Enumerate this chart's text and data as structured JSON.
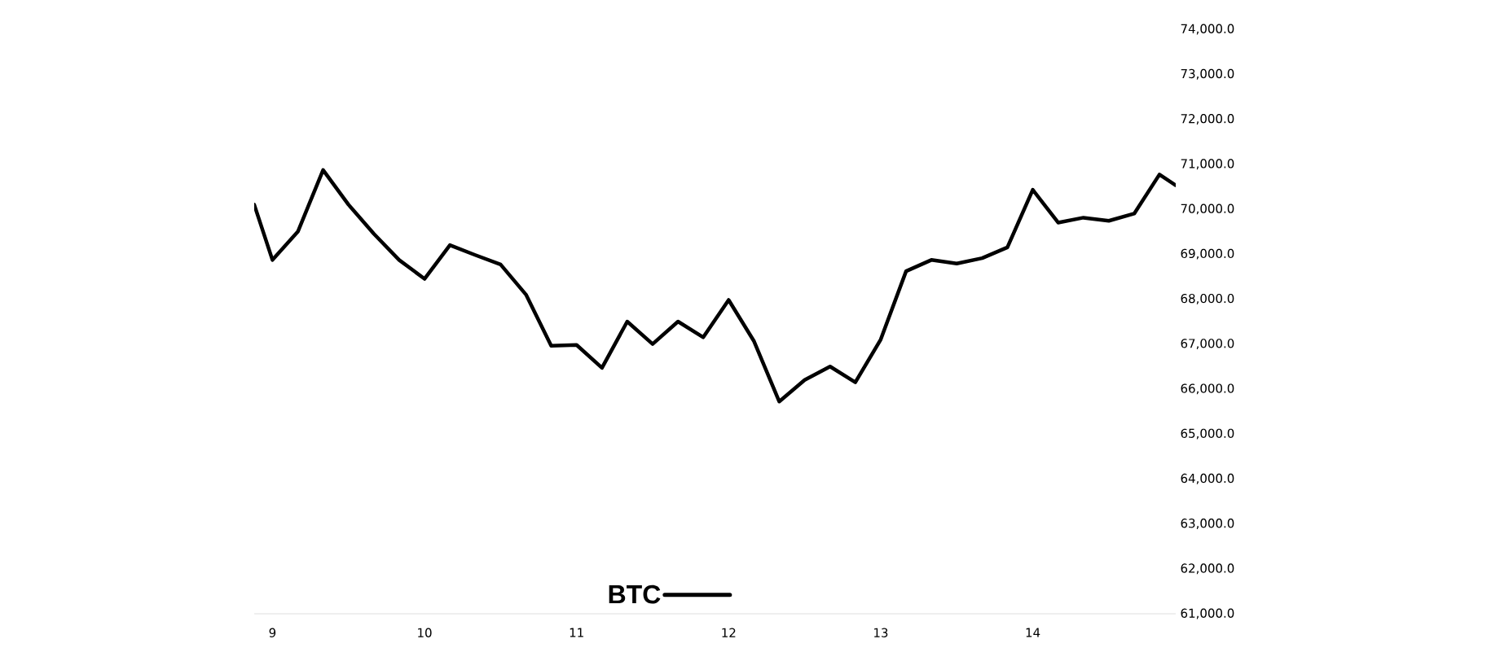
{
  "chart_data": {
    "type": "line",
    "x": [
      8.88,
      9,
      9.167,
      9.333,
      9.5,
      9.667,
      9.833,
      10,
      10.167,
      10.333,
      10.5,
      10.667,
      10.833,
      11,
      11.167,
      11.333,
      11.5,
      11.667,
      11.833,
      12,
      12.167,
      12.333,
      12.5,
      12.667,
      12.833,
      13,
      13.167,
      13.333,
      13.5,
      13.667,
      13.833,
      14,
      14.167,
      14.333,
      14.5,
      14.667,
      14.833,
      14.94
    ],
    "series": [
      {
        "name": "BTC",
        "color": "#000000",
        "values": [
          70100,
          68870,
          69500,
          70870,
          70100,
          69450,
          68870,
          68450,
          69200,
          68980,
          68770,
          68100,
          66960,
          66980,
          66470,
          67500,
          67000,
          67500,
          67150,
          67980,
          67060,
          65720,
          66200,
          66500,
          66150,
          67100,
          68620,
          68870,
          68790,
          68910,
          69150,
          70430,
          69700,
          69810,
          69740,
          69900,
          70770,
          70530
        ]
      }
    ],
    "xlim": [
      8.88,
      14.94
    ],
    "xticks": [
      9,
      10,
      11,
      12,
      13,
      14
    ],
    "ylim": [
      61000,
      74000
    ],
    "yticks": [
      {
        "value": 61000,
        "label": "61,000.0"
      },
      {
        "value": 62000,
        "label": "62,000.0"
      },
      {
        "value": 63000,
        "label": "63,000.0"
      },
      {
        "value": 64000,
        "label": "64,000.0"
      },
      {
        "value": 65000,
        "label": "65,000.0"
      },
      {
        "value": 66000,
        "label": "66,000.0"
      },
      {
        "value": 67000,
        "label": "67,000.0"
      },
      {
        "value": 68000,
        "label": "68,000.0"
      },
      {
        "value": 69000,
        "label": "69,000.0"
      },
      {
        "value": 70000,
        "label": "70,000.0"
      },
      {
        "value": 71000,
        "label": "71,000.0"
      },
      {
        "value": 72000,
        "label": "72,000.0"
      },
      {
        "value": 73000,
        "label": "73,000.0"
      },
      {
        "value": 74000,
        "label": "74,000.0"
      }
    ],
    "legend": "bottom",
    "marker": "none",
    "line_style": "solid",
    "grid": false
  }
}
